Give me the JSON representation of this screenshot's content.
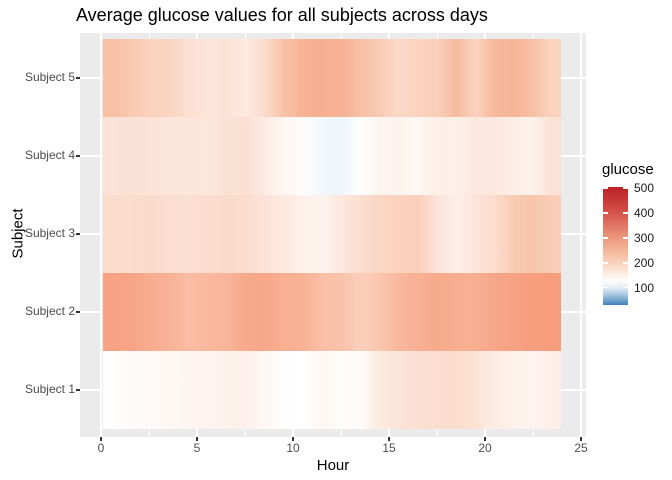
{
  "chart_data": {
    "type": "heatmap",
    "title": "Average glucose values for all subjects across days",
    "xlabel": "Hour",
    "ylabel": "Subject",
    "legend_title": "glucose",
    "x_ticks": [
      0,
      5,
      10,
      15,
      20,
      25
    ],
    "x_axis_range": [
      0,
      25
    ],
    "tile_hour_range": [
      0,
      24
    ],
    "hours": [
      0,
      1,
      2,
      3,
      4,
      5,
      6,
      7,
      8,
      9,
      10,
      11,
      12,
      13,
      14,
      15,
      16,
      17,
      18,
      19,
      20,
      21,
      22,
      23
    ],
    "subjects": [
      {
        "label": "Subject 5",
        "values": [
          235,
          225,
          215,
          212,
          195,
          190,
          192,
          182,
          205,
          232,
          250,
          255,
          250,
          236,
          222,
          205,
          212,
          215,
          240,
          212,
          242,
          248,
          235,
          210
        ],
        "colors": [
          "#F8C0A5",
          "#F9C9B1",
          "#FAD2BE",
          "#FAD4C0",
          "#FCE0D2",
          "#FCE5D9",
          "#FCE2D5",
          "#FDEAE0",
          "#FBDACB",
          "#F8C2A8",
          "#F6B294",
          "#F5AE90",
          "#F6B294",
          "#F8BFA4",
          "#F9CBB5",
          "#FBD9C9",
          "#FAD2BE",
          "#FAD0BC",
          "#F7BCA0",
          "#FAD3C0",
          "#F7B99C",
          "#F6B496",
          "#F8C0A5",
          "#FAD3BF"
        ]
      },
      {
        "label": "Subject 4",
        "values": [
          192,
          194,
          192,
          189,
          188,
          187,
          194,
          195,
          180,
          158,
          148,
          118,
          112,
          145,
          162,
          163,
          157,
          172,
          169,
          183,
          185,
          173,
          165,
          193
        ],
        "colors": [
          "#FCE2D7",
          "#FBE0D4",
          "#FCE2D7",
          "#FCE5DA",
          "#FCE6DC",
          "#FCE7DD",
          "#FBE0D4",
          "#FBDFD3",
          "#FDEBE3",
          "#FEF6F2",
          "#FDFDFD",
          "#F3F7FB",
          "#F0F5FA",
          "#FEFEFE",
          "#FEF4EF",
          "#FDF3ED",
          "#FEF7F3",
          "#FDEEE7",
          "#FDF0E9",
          "#FCE8DF",
          "#FCE7DD",
          "#FDEEE6",
          "#FDF2EC",
          "#FBE1D6"
        ]
      },
      {
        "label": "Subject 3",
        "values": [
          203,
          203,
          205,
          200,
          199,
          202,
          205,
          202,
          192,
          185,
          170,
          165,
          185,
          200,
          210,
          215,
          218,
          192,
          170,
          190,
          203,
          222,
          228,
          220
        ],
        "colors": [
          "#FBDCCD",
          "#FBDCCD",
          "#FADACA",
          "#FBDED1",
          "#FBDFD2",
          "#FBDCCE",
          "#FADACA",
          "#FBDCCE",
          "#FCE3D8",
          "#FCE8DF",
          "#FEF1EB",
          "#FEF3EE",
          "#FCE8DE",
          "#FBDED1",
          "#FAD6C5",
          "#FAD2BF",
          "#F9CFBA",
          "#FCE3D8",
          "#FDEFE9",
          "#FCE5DB",
          "#FBDCCD",
          "#F9CBB4",
          "#F8C5AC",
          "#F9CDB7"
        ]
      },
      {
        "label": "Subject 2",
        "values": [
          270,
          268,
          258,
          252,
          240,
          245,
          248,
          262,
          263,
          254,
          252,
          238,
          235,
          220,
          230,
          245,
          253,
          261,
          257,
          254,
          265,
          270,
          273,
          274
        ],
        "colors": [
          "#F7A284",
          "#F7A486",
          "#F8AC90",
          "#F8B296",
          "#FABDA5",
          "#F9B89E",
          "#F9B59B",
          "#F7A98B",
          "#F7A88A",
          "#F8B093",
          "#F8B296",
          "#FABFA7",
          "#FAC2AB",
          "#FBCFBB",
          "#FAC6AF",
          "#F9B89E",
          "#F8B195",
          "#F7AA8C",
          "#F8AE91",
          "#F8B093",
          "#F7A688",
          "#F7A284",
          "#F79E7F",
          "#F79D7E"
        ]
      },
      {
        "label": "Subject 1",
        "values": [
          147,
          152,
          154,
          155,
          160,
          161,
          167,
          168,
          155,
          147,
          145,
          158,
          148,
          150,
          180,
          188,
          193,
          197,
          197,
          191,
          178,
          167,
          161,
          172
        ],
        "colors": [
          "#FFFEFE",
          "#FEFAF8",
          "#FEF9F6",
          "#FEF8F5",
          "#FEF5F0",
          "#FEF4EF",
          "#FDF1EB",
          "#FDF0EA",
          "#FEF8F5",
          "#FFFEFE",
          "#FFFFFF",
          "#FEF6F2",
          "#FFFDFC",
          "#FEFBFA",
          "#FCEADF",
          "#FBE4D8",
          "#FBE0D2",
          "#FADDCE",
          "#FADDCD",
          "#FBE2D5",
          "#FCEBE2",
          "#FDF1EB",
          "#FEF4EF",
          "#FDEEE7"
        ]
      }
    ],
    "legend": {
      "title": "glucose",
      "ticks": [
        500,
        400,
        300,
        200,
        100
      ],
      "domain_min": 30,
      "domain_max": 505,
      "stops": [
        {
          "value": 505,
          "color": "#BE2126"
        },
        {
          "value": 460,
          "color": "#C73634"
        },
        {
          "value": 420,
          "color": "#D04842"
        },
        {
          "value": 380,
          "color": "#DA6155"
        },
        {
          "value": 340,
          "color": "#E37E69"
        },
        {
          "value": 300,
          "color": "#EB977C"
        },
        {
          "value": 260,
          "color": "#F1B092"
        },
        {
          "value": 220,
          "color": "#F6C7AF"
        },
        {
          "value": 190,
          "color": "#F9D7C5"
        },
        {
          "value": 160,
          "color": "#FCE9DD"
        },
        {
          "value": 140,
          "color": "#FEF6F1"
        },
        {
          "value": 128,
          "color": "#FEFDFD"
        },
        {
          "value": 115,
          "color": "#F2F6FA"
        },
        {
          "value": 100,
          "color": "#E2ECF5"
        },
        {
          "value": 85,
          "color": "#C6DAEB"
        },
        {
          "value": 70,
          "color": "#A3C4DF"
        },
        {
          "value": 55,
          "color": "#7FACD3"
        },
        {
          "value": 42,
          "color": "#5E97C6"
        },
        {
          "value": 30,
          "color": "#3E7CB6"
        }
      ]
    },
    "colors": {
      "panel_bg": "#EBEBEB",
      "grid": "#FFFFFF",
      "tick_mark": "#333333",
      "tick_label": "#4D4D4D",
      "text": "#000000"
    }
  }
}
